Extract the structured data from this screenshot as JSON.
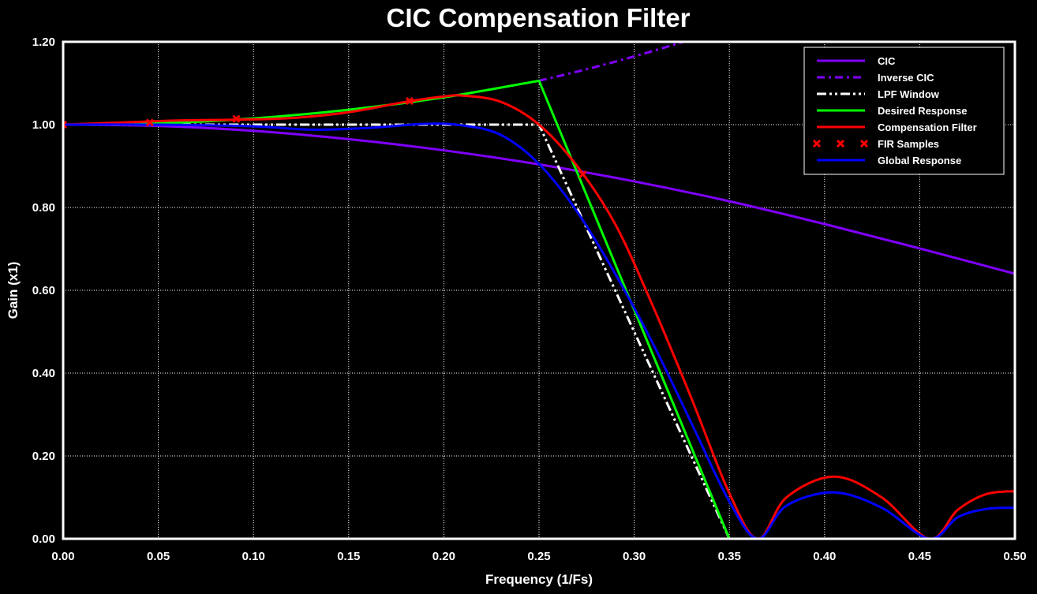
{
  "chart_data": {
    "type": "line",
    "title": "CIC Compensation Filter",
    "xlabel": "Frequency (1/Fs)",
    "ylabel": "Gain (x1)",
    "xlim": [
      0,
      0.5
    ],
    "ylim": [
      0,
      1.2
    ],
    "xticks": [
      "0.00",
      "0.05",
      "0.10",
      "0.15",
      "0.20",
      "0.25",
      "0.30",
      "0.35",
      "0.40",
      "0.45",
      "0.50"
    ],
    "yticks": [
      "0.00",
      "0.20",
      "0.40",
      "0.60",
      "0.80",
      "1.00",
      "1.20"
    ],
    "grid": true,
    "legend_position": "top-right",
    "background_color": "#000000",
    "series": [
      {
        "name": "CIC",
        "color": "#8000ff",
        "style": "solid",
        "x": [
          0,
          0.05,
          0.1,
          0.15,
          0.2,
          0.25,
          0.3,
          0.35,
          0.4,
          0.45,
          0.5
        ],
        "y": [
          1.0,
          0.997,
          0.985,
          0.965,
          0.938,
          0.904,
          0.863,
          0.815,
          0.76,
          0.701,
          0.64
        ]
      },
      {
        "name": "Inverse CIC",
        "color": "#8000ff",
        "style": "dashdot",
        "x": [
          0.25,
          0.27,
          0.29,
          0.31,
          0.33
        ],
        "y": [
          1.106,
          1.128,
          1.152,
          1.178,
          1.206
        ]
      },
      {
        "name": "LPF Window",
        "color": "#ffffff",
        "style": "dashdotdot",
        "x": [
          0,
          0.25,
          0.35
        ],
        "y": [
          1.0,
          1.0,
          0.0
        ]
      },
      {
        "name": "Desired Response",
        "color": "#00ff00",
        "style": "solid",
        "x": [
          0,
          0.05,
          0.1,
          0.15,
          0.2,
          0.25,
          0.35
        ],
        "y": [
          1.0,
          1.003,
          1.015,
          1.036,
          1.066,
          1.106,
          0.0
        ]
      },
      {
        "name": "Compensation Filter",
        "color": "#ff0000",
        "style": "solid",
        "x": [
          0,
          0.03,
          0.06,
          0.09,
          0.12,
          0.15,
          0.18,
          0.2,
          0.21,
          0.23,
          0.25,
          0.27,
          0.29,
          0.31,
          0.33,
          0.35,
          0.365,
          0.38,
          0.405,
          0.43,
          0.455,
          0.47,
          0.485,
          0.5
        ],
        "y": [
          1.0,
          1.005,
          1.01,
          1.012,
          1.016,
          1.03,
          1.055,
          1.068,
          1.07,
          1.055,
          1.0,
          0.9,
          0.76,
          0.56,
          0.34,
          0.11,
          0.0,
          0.1,
          0.15,
          0.1,
          0.0,
          0.07,
          0.108,
          0.115
        ]
      },
      {
        "name": "FIR Samples",
        "color": "#ff0000",
        "style": "markers",
        "x": [
          0,
          0.0455,
          0.091,
          0.182,
          0.273
        ],
        "y": [
          1.0,
          1.005,
          1.014,
          1.057,
          0.88
        ]
      },
      {
        "name": "Global Response",
        "color": "#0000ff",
        "style": "solid",
        "x": [
          0,
          0.05,
          0.1,
          0.13,
          0.16,
          0.19,
          0.21,
          0.23,
          0.25,
          0.27,
          0.29,
          0.31,
          0.33,
          0.35,
          0.365,
          0.38,
          0.405,
          0.43,
          0.455,
          0.47,
          0.485,
          0.5
        ],
        "y": [
          1.0,
          1.0,
          0.996,
          0.988,
          0.992,
          1.002,
          0.998,
          0.975,
          0.905,
          0.79,
          0.64,
          0.47,
          0.28,
          0.09,
          0.0,
          0.08,
          0.112,
          0.075,
          0.0,
          0.052,
          0.072,
          0.075
        ]
      }
    ]
  }
}
